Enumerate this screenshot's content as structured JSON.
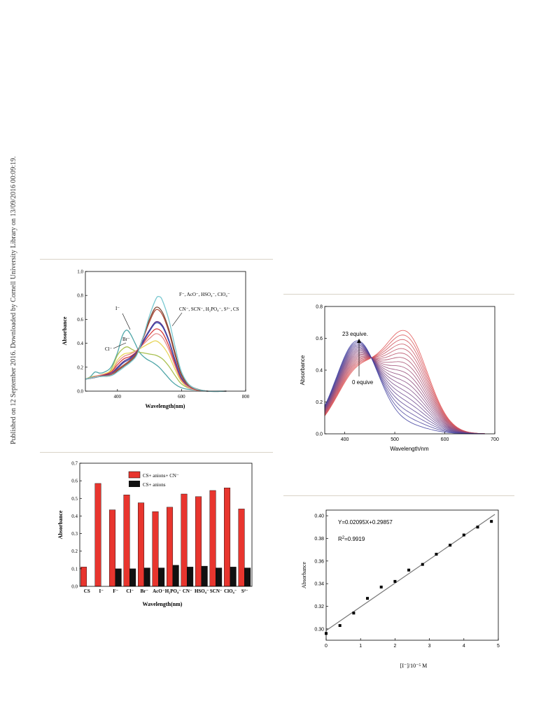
{
  "side_note": "Published on 12 September 2016. Downloaded by Cornell University Library on 13/09/2016 00:09:19.",
  "chart_data": [
    {
      "id": "fig-a",
      "type": "line",
      "xlabel": "Wavelength(nm)",
      "ylabel": "Absorbance",
      "xlim": [
        300,
        800
      ],
      "ylim": [
        0.0,
        1.0
      ],
      "xticks": [
        400,
        600,
        800
      ],
      "yticks": [
        0.0,
        0.2,
        0.4,
        0.6,
        0.8,
        1.0
      ],
      "annotations": [
        "I⁻",
        "Br⁻",
        "Cl⁻",
        "F⁻, AcO⁻, HSO₄⁻, ClO₄⁻",
        "CN⁻, SCN⁻, H₂PO₄⁻, S²⁻, CS"
      ],
      "series": [
        {
          "color": "#4fa6a8",
          "x": [
            300,
            315,
            330,
            345,
            360,
            380,
            400,
            415,
            428,
            440,
            455,
            470,
            490,
            510,
            530,
            550,
            570,
            590,
            610,
            640,
            680,
            740
          ],
          "y": [
            0.1,
            0.12,
            0.16,
            0.15,
            0.16,
            0.2,
            0.32,
            0.46,
            0.51,
            0.48,
            0.4,
            0.32,
            0.27,
            0.24,
            0.2,
            0.14,
            0.08,
            0.04,
            0.02,
            0.01,
            0.0,
            0.0
          ]
        },
        {
          "color": "#a8c050",
          "x": [
            300,
            320,
            340,
            360,
            380,
            400,
            415,
            430,
            445,
            460,
            480,
            500,
            520,
            540,
            560,
            580,
            600,
            630,
            680,
            740
          ],
          "y": [
            0.1,
            0.12,
            0.13,
            0.14,
            0.18,
            0.3,
            0.35,
            0.37,
            0.35,
            0.33,
            0.32,
            0.31,
            0.3,
            0.27,
            0.21,
            0.13,
            0.06,
            0.02,
            0.0,
            0.0
          ]
        },
        {
          "color": "#e7d55a",
          "x": [
            300,
            340,
            380,
            400,
            420,
            440,
            460,
            480,
            500,
            520,
            540,
            560,
            580,
            600,
            630,
            680,
            740
          ],
          "y": [
            0.1,
            0.13,
            0.17,
            0.26,
            0.31,
            0.32,
            0.34,
            0.37,
            0.4,
            0.42,
            0.38,
            0.3,
            0.18,
            0.08,
            0.02,
            0.0,
            0.0
          ]
        },
        {
          "color": "#e68a8a",
          "x": [
            300,
            340,
            380,
            400,
            420,
            440,
            460,
            480,
            500,
            520,
            540,
            560,
            580,
            600,
            630,
            680,
            740
          ],
          "y": [
            0.1,
            0.13,
            0.16,
            0.24,
            0.29,
            0.31,
            0.34,
            0.39,
            0.44,
            0.48,
            0.45,
            0.35,
            0.21,
            0.09,
            0.02,
            0.0,
            0.0
          ]
        },
        {
          "color": "#d63a3a",
          "x": [
            300,
            340,
            380,
            400,
            420,
            440,
            460,
            480,
            500,
            520,
            540,
            560,
            580,
            600,
            630,
            680,
            740
          ],
          "y": [
            0.1,
            0.12,
            0.16,
            0.22,
            0.27,
            0.29,
            0.33,
            0.4,
            0.47,
            0.52,
            0.49,
            0.38,
            0.23,
            0.1,
            0.03,
            0.0,
            0.0
          ]
        },
        {
          "color": "#5a2c86",
          "x": [
            300,
            340,
            380,
            400,
            420,
            440,
            460,
            480,
            500,
            520,
            540,
            560,
            580,
            600,
            630,
            680,
            740
          ],
          "y": [
            0.1,
            0.12,
            0.15,
            0.2,
            0.25,
            0.28,
            0.33,
            0.42,
            0.51,
            0.58,
            0.55,
            0.43,
            0.26,
            0.11,
            0.03,
            0.0,
            0.0
          ]
        },
        {
          "color": "#3a4fb0",
          "x": [
            300,
            340,
            380,
            400,
            420,
            440,
            460,
            480,
            500,
            520,
            540,
            560,
            580,
            600,
            630,
            680,
            740
          ],
          "y": [
            0.1,
            0.12,
            0.14,
            0.19,
            0.24,
            0.27,
            0.32,
            0.41,
            0.5,
            0.57,
            0.54,
            0.42,
            0.25,
            0.11,
            0.03,
            0.0,
            0.0
          ]
        },
        {
          "color": "#b04a3a",
          "x": [
            300,
            340,
            380,
            400,
            420,
            440,
            460,
            480,
            500,
            520,
            540,
            560,
            580,
            600,
            630,
            680,
            740
          ],
          "y": [
            0.1,
            0.12,
            0.14,
            0.18,
            0.22,
            0.26,
            0.32,
            0.44,
            0.58,
            0.68,
            0.64,
            0.5,
            0.3,
            0.13,
            0.03,
            0.0,
            0.0
          ]
        },
        {
          "color": "#7a4a38",
          "x": [
            300,
            340,
            380,
            400,
            420,
            440,
            460,
            480,
            500,
            520,
            540,
            560,
            580,
            600,
            630,
            680,
            740
          ],
          "y": [
            0.1,
            0.12,
            0.13,
            0.17,
            0.21,
            0.25,
            0.31,
            0.45,
            0.6,
            0.7,
            0.66,
            0.52,
            0.32,
            0.14,
            0.04,
            0.0,
            0.0
          ]
        },
        {
          "color": "#78c8d0",
          "x": [
            300,
            340,
            380,
            400,
            420,
            440,
            460,
            480,
            500,
            520,
            530,
            540,
            560,
            580,
            600,
            630,
            680,
            740
          ],
          "y": [
            0.1,
            0.12,
            0.13,
            0.16,
            0.2,
            0.24,
            0.3,
            0.45,
            0.63,
            0.77,
            0.79,
            0.76,
            0.6,
            0.37,
            0.16,
            0.04,
            0.0,
            0.0
          ]
        }
      ]
    },
    {
      "id": "fig-b",
      "type": "line",
      "xlabel": "Wavelength/nm",
      "ylabel": "Absorbance",
      "xlim": [
        360,
        700
      ],
      "ylim": [
        0.0,
        0.8
      ],
      "xticks": [
        400,
        500,
        600,
        700
      ],
      "yticks": [
        0.0,
        0.2,
        0.4,
        0.6,
        0.8
      ],
      "annotations": [
        "23 equive.",
        "0 equive"
      ],
      "series_count": 20,
      "color_start": "#e05050",
      "color_end": "#4040a0"
    },
    {
      "id": "fig-c",
      "type": "bar",
      "xlabel": "Wavelength(nm)",
      "ylabel": "Absorbance",
      "ylim": [
        0.0,
        0.7
      ],
      "yticks": [
        0.0,
        0.1,
        0.2,
        0.3,
        0.4,
        0.5,
        0.6,
        0.7
      ],
      "categories": [
        "CS",
        "I⁻",
        "F⁻",
        "Cl⁻",
        "Br⁻",
        "AcO⁻",
        "H₂PO₄⁻",
        "CN⁻",
        "HSO₄⁻",
        "SCN⁻",
        "ClO₄⁻",
        "S²⁻"
      ],
      "series": [
        {
          "name": "CS+ anions+ CN⁻",
          "color": "#e8352e",
          "values": [
            0.11,
            0.585,
            0.435,
            0.52,
            0.475,
            0.425,
            0.45,
            0.525,
            0.51,
            0.545,
            0.56,
            0.44
          ]
        },
        {
          "name": "CS+ anions",
          "color": "#111111",
          "values": [
            null,
            null,
            0.1,
            0.1,
            0.105,
            0.105,
            0.12,
            0.11,
            0.115,
            0.105,
            0.11,
            0.105
          ]
        }
      ]
    },
    {
      "id": "fig-d",
      "type": "scatter",
      "xlabel": "[I⁻]/10⁻⁵ M",
      "ylabel": "Absorbance",
      "xlim": [
        0,
        5
      ],
      "ylim": [
        0.29,
        0.405
      ],
      "xticks": [
        0,
        1,
        2,
        3,
        4,
        5
      ],
      "yticks": [
        0.3,
        0.32,
        0.34,
        0.36,
        0.38,
        0.4
      ],
      "equation": "Y=0.02095X+0.29857",
      "r2_label": "R",
      "r2_value": "=0.9919",
      "fit": {
        "slope": 0.02095,
        "intercept": 0.29857
      },
      "x": [
        0.0,
        0.4,
        0.8,
        1.2,
        1.6,
        2.0,
        2.4,
        2.8,
        3.2,
        3.6,
        4.0,
        4.4,
        4.8
      ],
      "y": [
        0.296,
        0.303,
        0.314,
        0.327,
        0.337,
        0.342,
        0.352,
        0.357,
        0.366,
        0.374,
        0.383,
        0.39,
        0.395
      ]
    }
  ]
}
